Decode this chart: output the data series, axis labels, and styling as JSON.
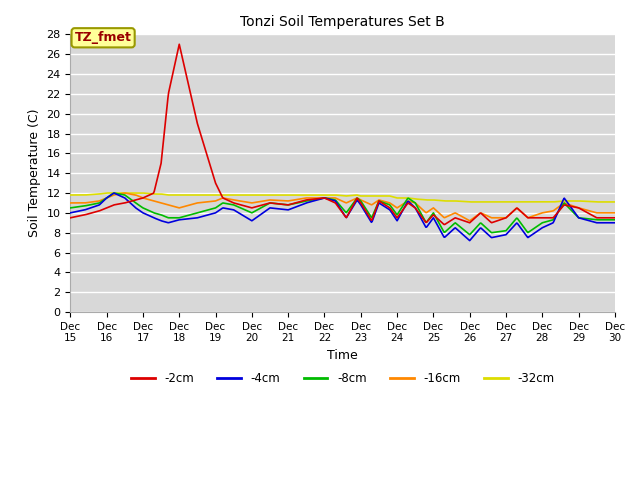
{
  "title": "Tonzi Soil Temperatures Set B",
  "xlabel": "Time",
  "ylabel": "Soil Temperature (C)",
  "ylim": [
    0,
    28
  ],
  "yticks": [
    0,
    2,
    4,
    6,
    8,
    10,
    12,
    14,
    16,
    18,
    20,
    22,
    24,
    26,
    28
  ],
  "x_labels": [
    "Dec 15",
    "Dec 16",
    "Dec 17",
    "Dec 18",
    "Dec 19",
    "Dec 20",
    "Dec 21",
    "Dec 22",
    "Dec 23",
    "Dec 24",
    "Dec 25",
    "Dec 26",
    "Dec 27",
    "Dec 28",
    "Dec 29",
    "Dec 30"
  ],
  "annotation_label": "TZ_fmet",
  "annotation_color": "#990000",
  "annotation_bg": "#ffff99",
  "annotation_border": "#999900",
  "fig_bg": "#ffffff",
  "plot_bg": "#d8d8d8",
  "grid_color": "#ffffff",
  "series": {
    "-2cm": {
      "color": "#dd0000",
      "lw": 1.2
    },
    "-4cm": {
      "color": "#0000dd",
      "lw": 1.2
    },
    "-8cm": {
      "color": "#00bb00",
      "lw": 1.2
    },
    "-16cm": {
      "color": "#ff8800",
      "lw": 1.2
    },
    "-32cm": {
      "color": "#dddd00",
      "lw": 1.2
    }
  }
}
